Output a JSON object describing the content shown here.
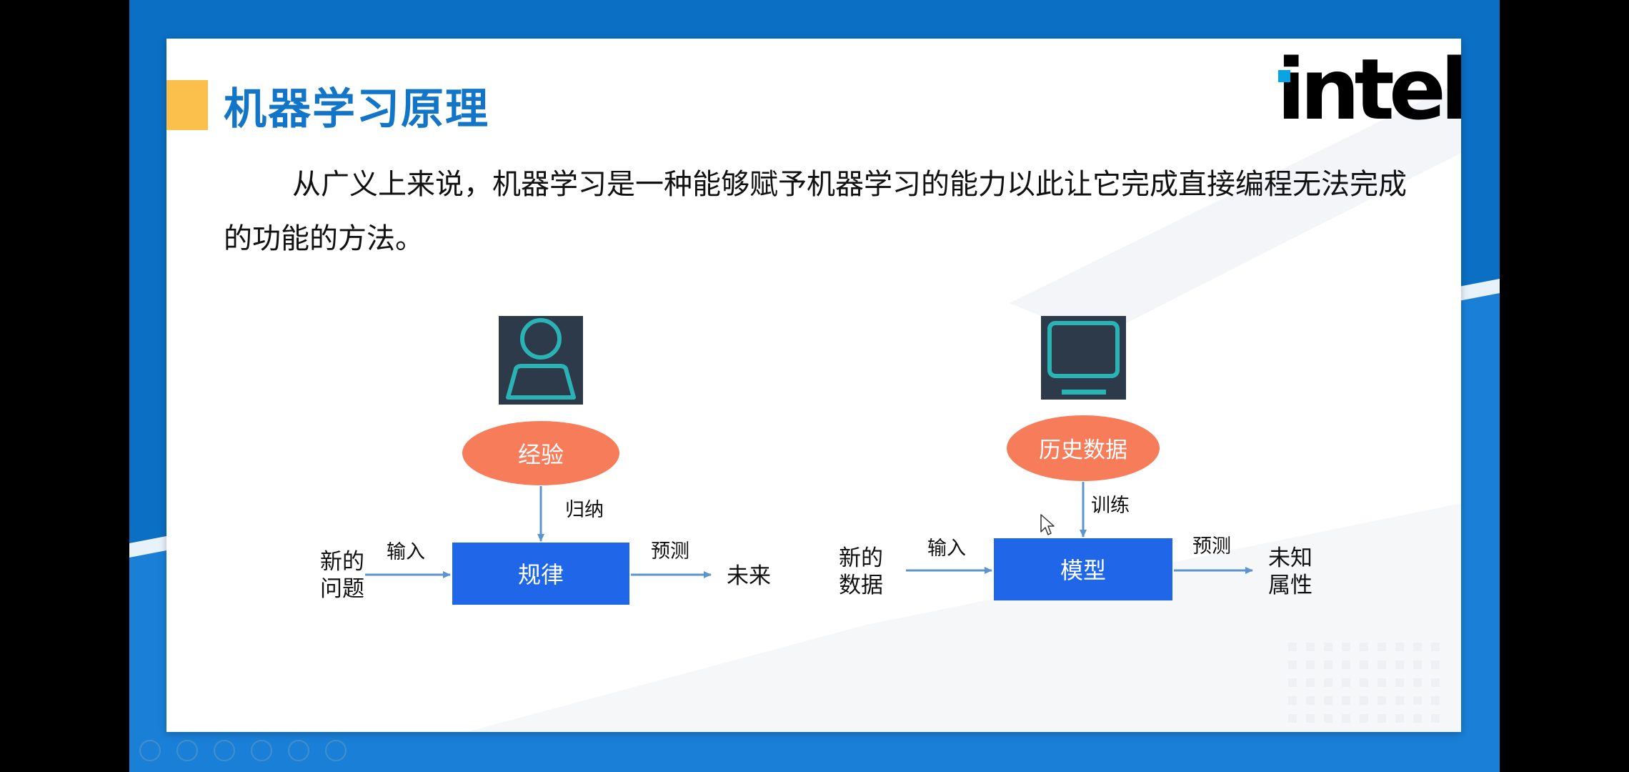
{
  "slide": {
    "title": "机器学习原理",
    "logo_text": "intel",
    "intro_text": "从广义上来说，机器学习是一种能够赋予机器学习的能力以此让它完成直接编程无法完成的功能的方法。",
    "colors": {
      "background_blue": "#0b6fc3",
      "title_blue": "#1275c8",
      "accent_yellow": "#fbc04b",
      "oval_orange": "#f77c5a",
      "box_blue": "#1f67e8",
      "icon_teal": "#2ab3b5",
      "icon_bg": "#2d3a4a",
      "arrow_blue": "#5b95cf"
    }
  },
  "diagram": {
    "left": {
      "icon": "person-icon",
      "oval_label": "经验",
      "arrow_label": "归纳",
      "box_label": "规律",
      "input_label_line1": "新的",
      "input_label_line2": "问题",
      "input_arrow_label": "输入",
      "output_arrow_label": "预测",
      "output_label": "未来"
    },
    "right": {
      "icon": "monitor-icon",
      "oval_label": "历史数据",
      "arrow_label": "训练",
      "box_label": "模型",
      "input_label_line1": "新的",
      "input_label_line2": "数据",
      "input_arrow_label": "输入",
      "output_arrow_label": "预测",
      "output_label_line1": "未知",
      "output_label_line2": "属性"
    }
  }
}
